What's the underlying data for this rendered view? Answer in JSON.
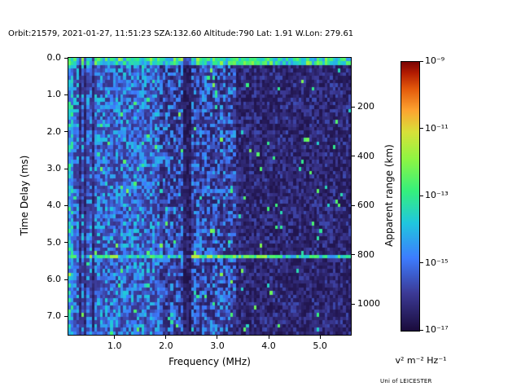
{
  "figure": {
    "credit": "Uni of LEICESTER"
  },
  "chart_data": {
    "type": "heatmap",
    "title": "Orbit:21579, 2021-01-27, 11:51:23 SZA:132.60 Altitude:790 Lat: 1.91 W.Lon: 279.61",
    "xlabel": "Frequency (MHz)",
    "ylabel": "Time Delay (ms)",
    "y2label": "Apparent range (km)",
    "colorbar_label": "v² m⁻² Hz⁻¹",
    "x_range": [
      0.1,
      5.6
    ],
    "y_range": [
      0,
      7.5
    ],
    "y_inverted": true,
    "grid": false,
    "x_tick_values": [
      1.0,
      2.0,
      3.0,
      4.0,
      5.0
    ],
    "x_tick_labels": [
      "1.0",
      "2.0",
      "3.0",
      "4.0",
      "5.0"
    ],
    "y_tick_values": [
      0.0,
      1.0,
      2.0,
      3.0,
      4.0,
      5.0,
      6.0,
      7.0
    ],
    "y_tick_labels": [
      "0.0",
      "1.0",
      "2.0",
      "3.0",
      "4.0",
      "5.0",
      "6.0",
      "7.0"
    ],
    "y2_tick_values_km": [
      200,
      400,
      600,
      800,
      1000
    ],
    "y2_tick_labels": [
      "200",
      "400",
      "600",
      "800",
      "1000"
    ],
    "km_per_ms": 150,
    "color_scale": {
      "scale": "log",
      "min": 1e-17,
      "max": 1e-09,
      "tick_labels": [
        "10⁻⁹",
        "10⁻¹¹",
        "10⁻¹³",
        "10⁻¹⁵",
        "10⁻¹⁷"
      ],
      "tick_fractions_from_top": [
        0,
        0.25,
        0.5,
        0.75,
        1
      ]
    },
    "colormap_stops": [
      [
        0.0,
        "#1a0b3b"
      ],
      [
        0.14,
        "#3c3a96"
      ],
      [
        0.27,
        "#3d7cfe"
      ],
      [
        0.4,
        "#20c6df"
      ],
      [
        0.52,
        "#35f07c"
      ],
      [
        0.64,
        "#8ff542"
      ],
      [
        0.74,
        "#d8e039"
      ],
      [
        0.82,
        "#fda330"
      ],
      [
        0.9,
        "#e3590b"
      ],
      [
        0.96,
        "#b11a01"
      ],
      [
        1.0,
        "#7a0403"
      ]
    ],
    "heatmap": {
      "seed": 20210127,
      "cols": 108,
      "rows": 76,
      "base": 0.06,
      "amp": 0.3,
      "features": {
        "top_band": {
          "delay_max_ms": 0.24,
          "level": 0.3,
          "jitter": 0.3
        },
        "ground_echo": {
          "delay_ms": 5.38,
          "half_width_ms": 0.05,
          "level": 0.28,
          "jitter": 0.3,
          "bright_freq_bands_mhz": [
            [
              0.35,
              1.05
            ],
            [
              2.5,
              4.0
            ]
          ]
        },
        "dark_columns_mhz": [
          0.33,
          0.44,
          0.56
        ],
        "dark_band_mhz": [
          2.33,
          2.47
        ],
        "bright_region_max_mhz": 1.9,
        "dim_region_min_mhz": 3.35,
        "bright_left_edge_max_mhz": 0.18,
        "speckle_chance": 0.018
      }
    }
  }
}
